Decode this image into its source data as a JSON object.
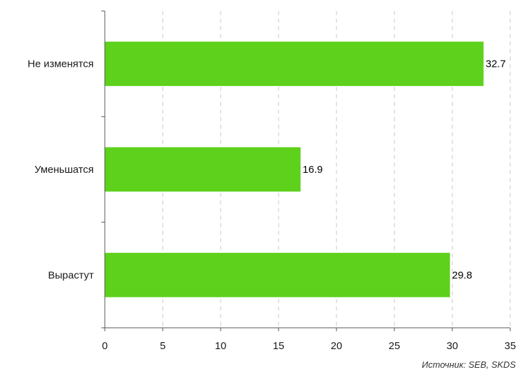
{
  "chart_data": {
    "type": "bar",
    "orientation": "horizontal",
    "categories": [
      "Не изменятся",
      "Уменьшатся",
      "Вырастут"
    ],
    "values": [
      32.7,
      16.9,
      29.8
    ],
    "value_labels": [
      "32.7",
      "16.9",
      "29.8"
    ],
    "xlim": [
      0,
      35
    ],
    "x_ticks": [
      0,
      5,
      10,
      15,
      20,
      25,
      30,
      35
    ],
    "x_tick_labels": [
      "0",
      "5",
      "10",
      "15",
      "20",
      "25",
      "30",
      "35"
    ],
    "grid": "vertical dashed",
    "bar_color": "#5dd11b",
    "title": "",
    "xlabel": "",
    "ylabel": ""
  },
  "source_note": "Источник: SEB, SKDS"
}
